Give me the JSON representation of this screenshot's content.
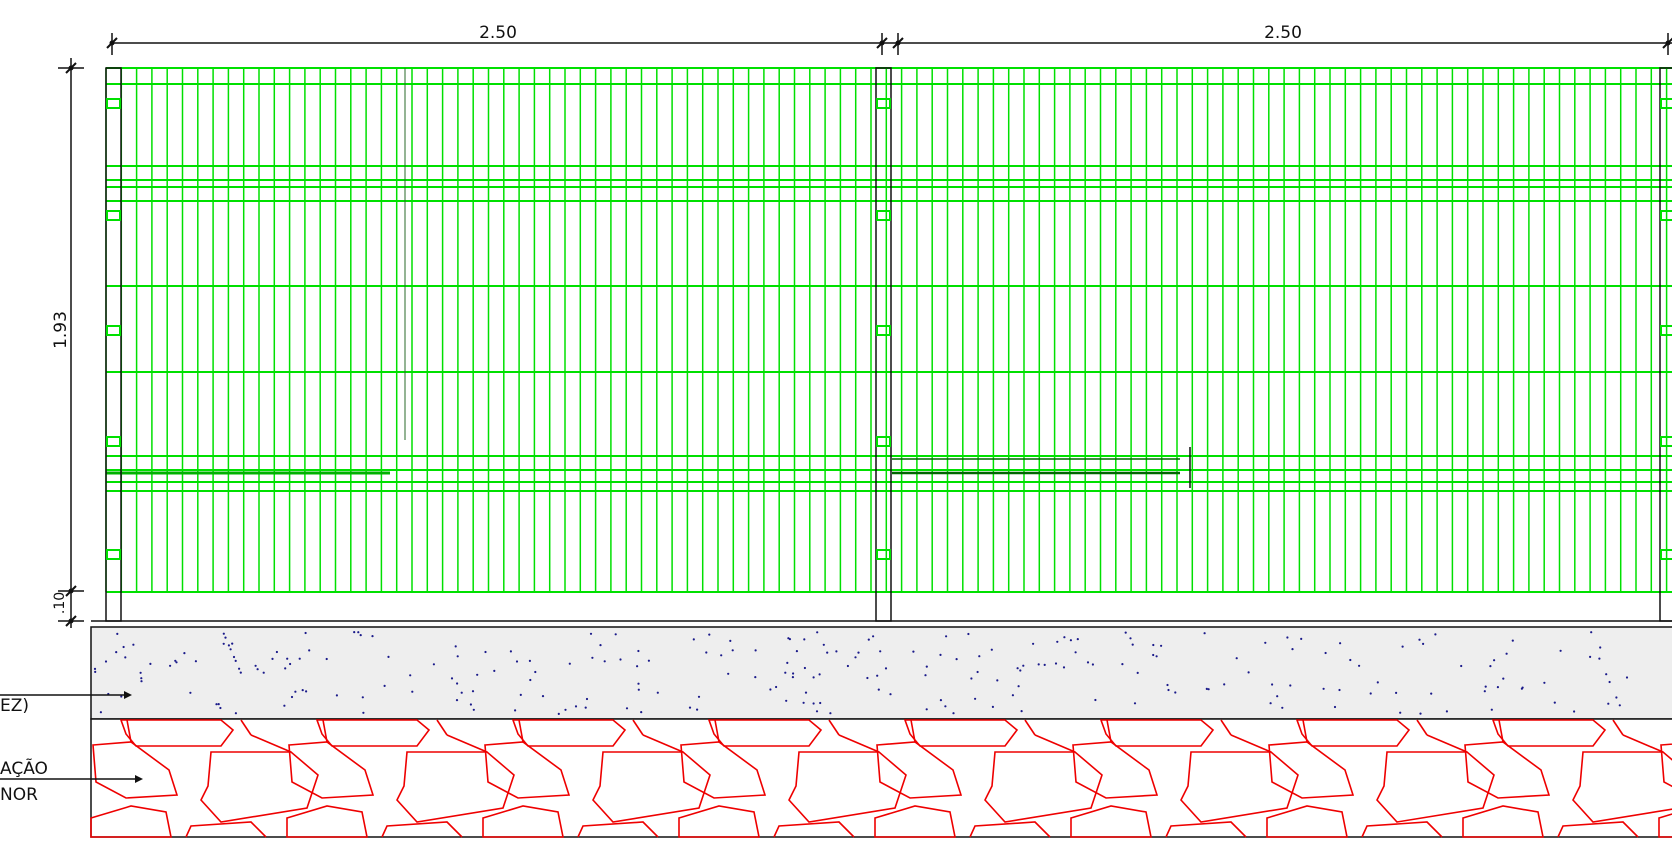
{
  "drawing": {
    "dimensions": {
      "panel_1_width": "2.50",
      "panel_2_width": "2.50",
      "mesh_height": "1.93",
      "base_gap": ".10"
    },
    "callouts": {
      "concrete_label": "EZ)",
      "rubble_label_line1": "AÇÃO",
      "rubble_label_line2": "NOR"
    },
    "colors": {
      "mesh": "#00e000",
      "mesh_dark": "#00b000",
      "line": "#111111",
      "concrete_fill": "#eeeeee",
      "concrete_dots": "#1a1a8a",
      "rubble": "#ee0000"
    }
  }
}
